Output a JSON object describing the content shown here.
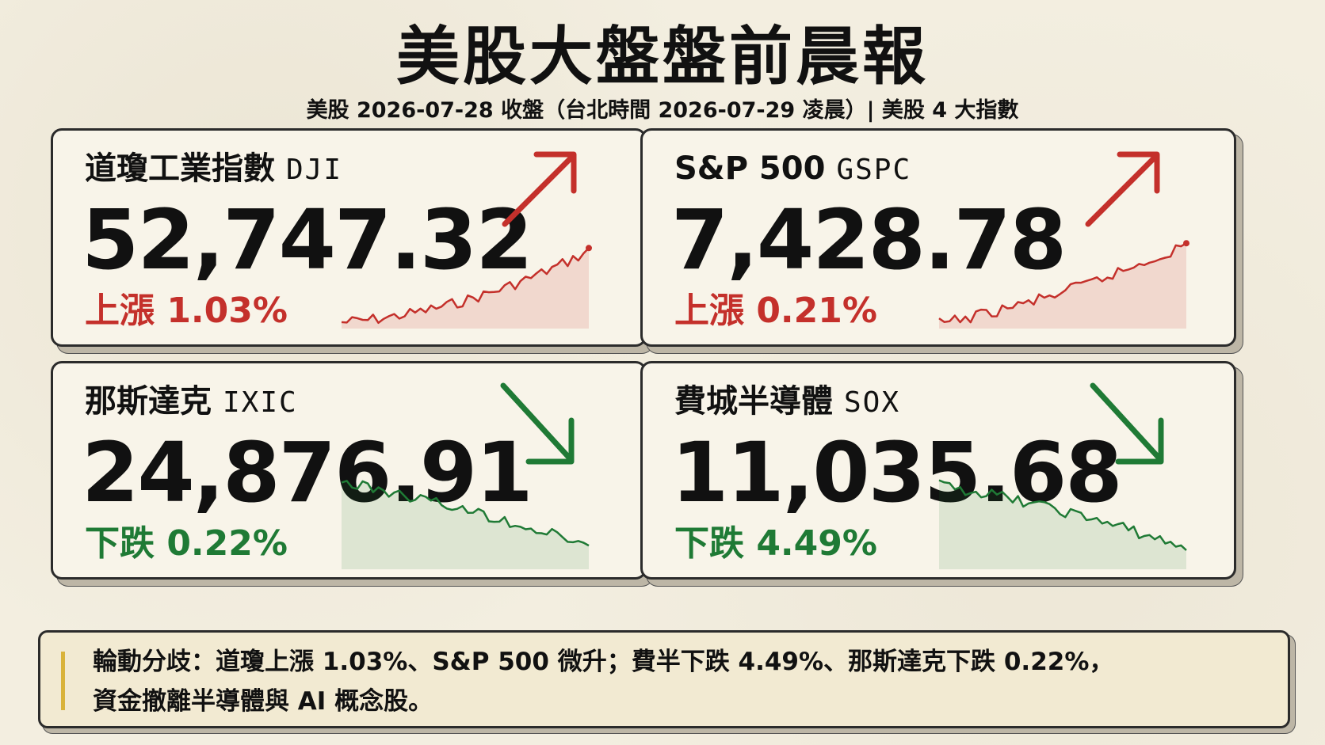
{
  "header": {
    "title": "美股大盤盤前晨報",
    "subtitle": "美股 2026-07-28 收盤（台北時間 2026-07-29 凌晨）| 美股 4 大指數"
  },
  "cards": [
    {
      "name": "道瓊工業指數",
      "code": "DJI",
      "value": "52,747.32",
      "change": "上漲 1.03%",
      "direction": "up",
      "color": "#c4302b"
    },
    {
      "name": "S&P 500",
      "code": "GSPC",
      "value": "7,428.78",
      "change": "上漲 0.21%",
      "direction": "up",
      "color": "#c4302b"
    },
    {
      "name": "那斯達克",
      "code": "IXIC",
      "value": "24,876.91",
      "change": "下跌 0.22%",
      "direction": "down",
      "color": "#1f7a35"
    },
    {
      "name": "費城半導體",
      "code": "SOX",
      "value": "11,035.68",
      "change": "下跌 4.49%",
      "direction": "down",
      "color": "#1f7a35"
    }
  ],
  "note": {
    "line1": "輪動分歧：道瓊上漲 1.03%、S&P 500 微升；費半下跌 4.49%、那斯達克下跌 0.22%，",
    "line2": "資金撤離半導體與 AI 概念股。"
  }
}
